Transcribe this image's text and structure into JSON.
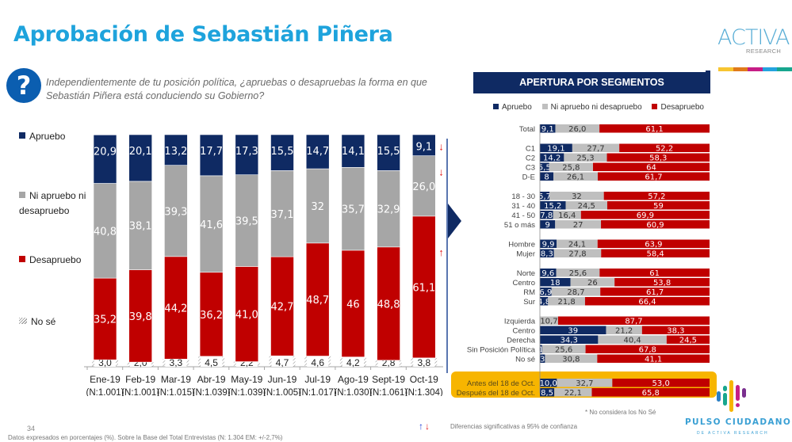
{
  "header": {
    "title": "Aprobación de Sebastián Piñera",
    "question_icon": "?",
    "question": "Independientemente de tu posición política, ¿apruebas o desapruebas la forma en que Sebastián Piñera está conduciendo su Gobierno?"
  },
  "colors": {
    "apruebo": "#0f2a63",
    "ni": "#a6a6a6",
    "desapruebo": "#c00000",
    "seg_ni": "#bfbfbf",
    "highlight": "#f7b500",
    "title": "#1ea3dc",
    "sig_up": "#1f3fd6",
    "sig_down": "#e21b1b"
  },
  "legend_left": [
    {
      "label": "Apruebo",
      "key": "apruebo"
    },
    {
      "label": "Ni apruebo ni desapruebo",
      "key": "ni"
    },
    {
      "label": "Desapruebo",
      "key": "desapruebo"
    },
    {
      "label": "No sé",
      "key": "nose"
    }
  ],
  "chart_data": [
    {
      "type": "bar",
      "stacked": true,
      "title": "Aprobación de Sebastián Piñera",
      "categories": [
        "Ene-19",
        "Feb-19",
        "Mar-19",
        "Abr-19",
        "May-19",
        "Jun-19",
        "Jul-19",
        "Ago-19",
        "Sept-19",
        "Oct-19"
      ],
      "sample_sizes": [
        "(N:1.001)",
        "(N:1.001)",
        "(N:1.015)",
        "(N:1.039)",
        "(N:1.039)",
        "(N:1.005)",
        "(N:1.017)",
        "(N:1.030)",
        "(N:1.061)",
        "(N:1.304)"
      ],
      "series": [
        {
          "name": "No sé",
          "key": "nose",
          "values": [
            3.0,
            2.0,
            3.3,
            4.5,
            2.2,
            4.7,
            4.6,
            4.2,
            2.8,
            3.8
          ],
          "labels": [
            "3,0",
            "2,0",
            "3,3",
            "4,5",
            "2,2",
            "4,7",
            "4,6",
            "4,2",
            "2,8",
            "3,8"
          ]
        },
        {
          "name": "Desapruebo",
          "key": "desapruebo",
          "values": [
            35.2,
            39.8,
            44.2,
            36.2,
            41.0,
            42.7,
            48.7,
            46,
            48.8,
            61.1
          ],
          "labels": [
            "35,2",
            "39,8",
            "44,2",
            "36,2",
            "41,0",
            "42,7",
            "48,7",
            "46",
            "48,8",
            "61,1"
          ]
        },
        {
          "name": "Ni apruebo ni desapruebo",
          "key": "ni",
          "values": [
            40.8,
            38.1,
            39.3,
            41.6,
            39.5,
            37.1,
            32,
            35.7,
            32.9,
            26.0
          ],
          "labels": [
            "40,8",
            "38,1",
            "39,3",
            "41,6",
            "39,5",
            "37,1",
            "32",
            "35,7",
            "32,9",
            "26,0"
          ]
        },
        {
          "name": "Apruebo",
          "key": "apruebo",
          "values": [
            20.9,
            20.1,
            13.2,
            17.7,
            17.3,
            15.5,
            14.7,
            14.1,
            15.5,
            9.1
          ],
          "labels": [
            "20,9",
            "20,1",
            "13,2",
            "17,7",
            "17,3",
            "15,5",
            "14,7",
            "14,1",
            "15,5",
            "9,1"
          ]
        }
      ],
      "significance": [
        {
          "category": "Oct-19",
          "series": "Apruebo",
          "direction": "down"
        },
        {
          "category": "Oct-19",
          "series": "Ni apruebo ni desapruebo",
          "direction": "down"
        },
        {
          "category": "Oct-19",
          "series": "Desapruebo",
          "direction": "up"
        }
      ],
      "ylim": [
        0,
        100
      ],
      "grid": false,
      "legend": "left"
    },
    {
      "type": "bar",
      "orientation": "horizontal",
      "stacked": true,
      "title": "APERTURA POR SEGMENTOS",
      "legend_labels": [
        "Apruebo",
        "Ni apruebo ni desapruebo",
        "Desapruebo"
      ],
      "groups": [
        {
          "rows": [
            {
              "label": "Total",
              "values": [
                9.1,
                26.0,
                61.1
              ],
              "labels": [
                "9,1",
                "26,0",
                "61,1"
              ]
            }
          ]
        },
        {
          "rows": [
            {
              "label": "C1",
              "values": [
                19.1,
                27.7,
                52.2
              ],
              "labels": [
                "19,1",
                "27,7",
                "52,2"
              ]
            },
            {
              "label": "C2",
              "values": [
                14.2,
                25.3,
                58.3
              ],
              "labels": [
                "14,2",
                "25,3",
                "58,3"
              ]
            },
            {
              "label": "C3",
              "values": [
                5.5,
                25.8,
                64
              ],
              "labels": [
                "5,5",
                "25,8",
                "64"
              ]
            },
            {
              "label": "D-E",
              "values": [
                8,
                26.1,
                61.7
              ],
              "labels": [
                "8",
                "26,1",
                "61,7"
              ]
            }
          ]
        },
        {
          "rows": [
            {
              "label": "18 - 30",
              "values": [
                5.7,
                32,
                57.2
              ],
              "labels": [
                "5,7",
                "32",
                "57,2"
              ]
            },
            {
              "label": "31 - 40",
              "values": [
                15.2,
                24.5,
                59
              ],
              "labels": [
                "15,2",
                "24,5",
                "59"
              ]
            },
            {
              "label": "41 - 50",
              "values": [
                7.8,
                16.4,
                69.9
              ],
              "labels": [
                "7,8",
                "16,4",
                "69,9"
              ]
            },
            {
              "label": "51 o más",
              "values": [
                9,
                27,
                60.9
              ],
              "labels": [
                "9",
                "27",
                "60,9"
              ]
            }
          ]
        },
        {
          "rows": [
            {
              "label": "Hombre",
              "values": [
                9.9,
                24.1,
                63.9
              ],
              "labels": [
                "9,9",
                "24,1",
                "63,9"
              ]
            },
            {
              "label": "Mujer",
              "values": [
                8.3,
                27.8,
                58.4
              ],
              "labels": [
                "8,3",
                "27,8",
                "58,4"
              ]
            }
          ]
        },
        {
          "rows": [
            {
              "label": "Norte",
              "values": [
                9.6,
                25.6,
                61
              ],
              "labels": [
                "9,6",
                "25,6",
                "61"
              ]
            },
            {
              "label": "Centro",
              "values": [
                18,
                26,
                53.8
              ],
              "labels": [
                "18",
                "26",
                "53,8"
              ]
            },
            {
              "label": "RM",
              "values": [
                6.9,
                28.7,
                61.7
              ],
              "labels": [
                "6,9",
                "28,7",
                "61,7"
              ]
            },
            {
              "label": "Sur",
              "values": [
                4.8,
                21.8,
                66.4
              ],
              "labels": [
                "4,8",
                "21,8",
                "66,4"
              ]
            }
          ]
        },
        {
          "rows": [
            {
              "label": "Izquierda",
              "values": [
                0,
                10.7,
                87.7
              ],
              "labels": [
                "",
                "10,7",
                "87,7"
              ]
            },
            {
              "label": "Centro",
              "values": [
                39,
                21.2,
                38.3
              ],
              "labels": [
                "39",
                "21,2",
                "38,3"
              ]
            },
            {
              "label": "Derecha",
              "values": [
                34.3,
                40.4,
                24.5
              ],
              "labels": [
                "34,3",
                "40,4",
                "24,5"
              ]
            },
            {
              "label": "Sin Posición Política",
              "values": [
                1.3,
                25.6,
                67.8
              ],
              "labels": [
                "1",
                "25,6",
                "67,8"
              ]
            },
            {
              "label": "No sé",
              "values": [
                3,
                30.8,
                41.1
              ],
              "labels": [
                "3",
                "30,8",
                "41,1"
              ]
            }
          ]
        },
        {
          "highlight": true,
          "rows": [
            {
              "label": "Antes del 18 de Oct.",
              "values": [
                10.0,
                32.7,
                53.0
              ],
              "labels": [
                "10,0",
                "32,7",
                "53,0"
              ]
            },
            {
              "label": "Después del 18 de Oct.",
              "values": [
                8.5,
                22.1,
                65.8
              ],
              "labels": [
                "8,5",
                "22,1",
                "65,8"
              ]
            }
          ]
        }
      ],
      "xlim": [
        0,
        100
      ]
    }
  ],
  "footer": {
    "note": "* No considera los No Sé",
    "sig_up": "↑",
    "sig_down": "↓",
    "sig_text": "Diferencias  significativas a 95% de confianza",
    "page_number": "34",
    "footnote": "Datos expresados en porcentajes (%). Sobre la Base del Total Entrevistas (N: 1.304 EM: +/-2,7%)"
  },
  "branding": {
    "activa_word": "ACTIVA",
    "activa_sub": "RESEARCH",
    "strip_colors": [
      "#f7c531",
      "#e07a1b",
      "#c61e86",
      "#24a3df",
      "#17a68e"
    ],
    "pulso_title": "PULSO CIUDADANO",
    "pulso_sub": "DE ACTIVA RESEARCH"
  }
}
